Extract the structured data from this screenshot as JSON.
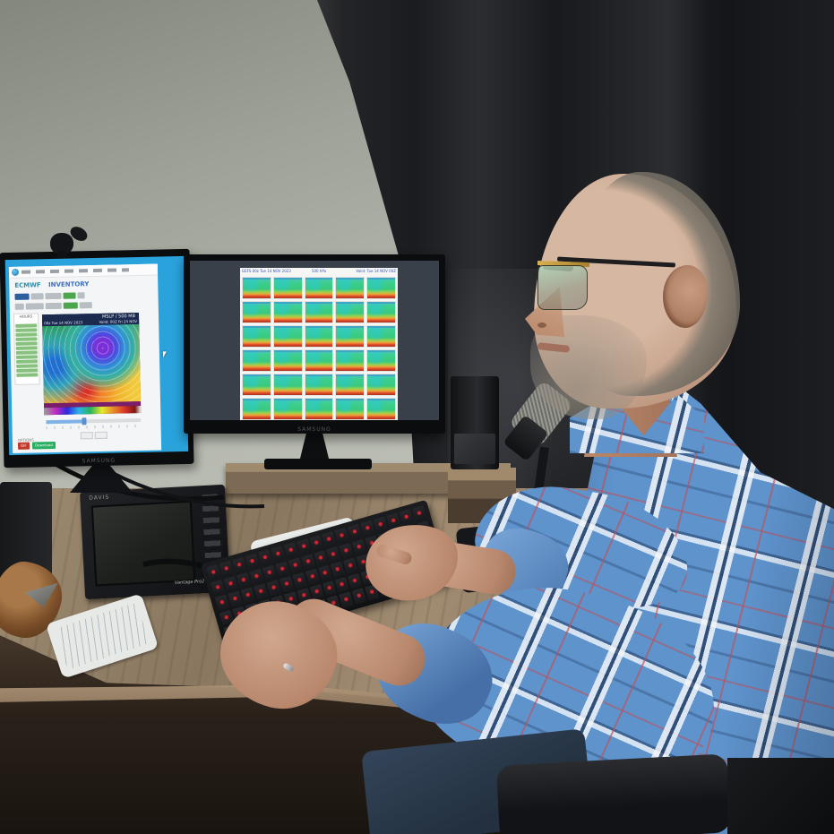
{
  "scene": {
    "description": "Man in a blue plaid shirt at a corner desk viewing weather model charts on two monitors"
  },
  "left_monitor": {
    "brand": "SAMSUNG",
    "page": {
      "model_heading": "ECMWF",
      "section_heading": "INVENTORY",
      "hours_label": "HOURS",
      "hours_rows": 12,
      "map_title": "MSLP / 500 MB",
      "map_init": "00z Tue 14 NOV 2023",
      "map_valid": "Valid: 00Z Fri 24 NOV",
      "options_label": "OPTIONS",
      "gif_label": "GIF",
      "download_label": "Download"
    }
  },
  "right_monitor": {
    "brand": "SAMSUNG",
    "page": {
      "header_left": "GEFS 00z Tue 14 NOV 2023",
      "header_center": "500 hPa",
      "header_right": "Valid: Tue 14 NOV 00Z",
      "grid_cols": 5,
      "grid_rows": 6
    }
  },
  "weather_console": {
    "brand": "DAVIS",
    "model": "Vantage Pro2"
  },
  "keyboard": {
    "rows": 5,
    "cols": 17
  },
  "colors": {
    "desktop_blue": "#2aa3dd",
    "chip_blue": "#2b5f9e",
    "chip_green": "#4ca64c",
    "gif_red": "#c0392b",
    "download_green": "#27ae60",
    "inventory_green_row": "#86c27e",
    "shirt_blue": "#5e93cc",
    "curtain_dark": "#1b1c1f"
  }
}
